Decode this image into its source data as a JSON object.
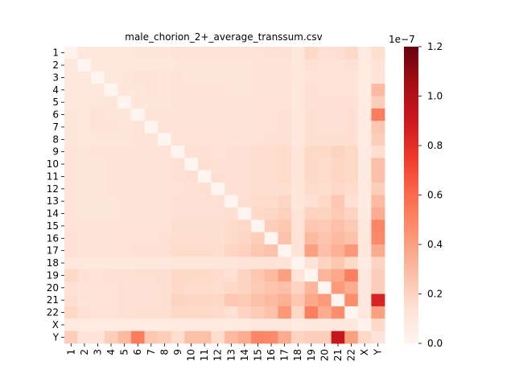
{
  "chart_data": {
    "type": "heatmap",
    "title": "male_chorion_2+_average_transsum.csv",
    "labels": [
      "1",
      "2",
      "3",
      "4",
      "5",
      "6",
      "7",
      "8",
      "9",
      "10",
      "11",
      "12",
      "13",
      "14",
      "15",
      "16",
      "17",
      "18",
      "19",
      "20",
      "21",
      "22",
      "X",
      "Y"
    ],
    "colorbar": {
      "min": 0.0,
      "max": 1.2,
      "offset_label": "1e−7",
      "ticks": [
        0.0,
        0.2,
        0.4,
        0.6,
        0.8,
        1.0,
        1.2
      ],
      "tick_labels": [
        "0.0",
        "0.2",
        "0.4",
        "0.6",
        "0.8",
        "1.0",
        "1.2"
      ],
      "colormap": "Reds"
    },
    "matrix": [
      [
        0.02,
        0.1,
        0.1,
        0.1,
        0.1,
        0.11,
        0.11,
        0.11,
        0.13,
        0.12,
        0.12,
        0.12,
        0.12,
        0.13,
        0.13,
        0.14,
        0.14,
        0.1,
        0.18,
        0.14,
        0.15,
        0.18,
        0.08,
        0.16
      ],
      [
        0.1,
        0.0,
        0.1,
        0.1,
        0.1,
        0.1,
        0.1,
        0.1,
        0.11,
        0.11,
        0.11,
        0.11,
        0.11,
        0.11,
        0.12,
        0.12,
        0.12,
        0.1,
        0.14,
        0.13,
        0.12,
        0.14,
        0.07,
        0.13
      ],
      [
        0.1,
        0.1,
        0.0,
        0.1,
        0.11,
        0.12,
        0.12,
        0.11,
        0.12,
        0.11,
        0.11,
        0.11,
        0.11,
        0.11,
        0.12,
        0.12,
        0.12,
        0.1,
        0.13,
        0.13,
        0.13,
        0.13,
        0.07,
        0.12
      ],
      [
        0.1,
        0.1,
        0.1,
        0.0,
        0.11,
        0.11,
        0.12,
        0.11,
        0.12,
        0.12,
        0.12,
        0.12,
        0.11,
        0.11,
        0.12,
        0.12,
        0.13,
        0.1,
        0.14,
        0.13,
        0.13,
        0.13,
        0.07,
        0.3
      ],
      [
        0.1,
        0.1,
        0.11,
        0.11,
        0.0,
        0.11,
        0.11,
        0.11,
        0.12,
        0.12,
        0.12,
        0.12,
        0.12,
        0.12,
        0.13,
        0.13,
        0.13,
        0.1,
        0.14,
        0.14,
        0.14,
        0.14,
        0.07,
        0.22
      ],
      [
        0.11,
        0.1,
        0.12,
        0.11,
        0.11,
        0.0,
        0.12,
        0.12,
        0.13,
        0.12,
        0.12,
        0.12,
        0.12,
        0.12,
        0.13,
        0.13,
        0.14,
        0.1,
        0.15,
        0.14,
        0.14,
        0.15,
        0.07,
        0.53
      ],
      [
        0.11,
        0.1,
        0.12,
        0.12,
        0.11,
        0.12,
        0.0,
        0.12,
        0.13,
        0.12,
        0.12,
        0.12,
        0.12,
        0.12,
        0.13,
        0.13,
        0.14,
        0.1,
        0.15,
        0.14,
        0.14,
        0.15,
        0.07,
        0.25
      ],
      [
        0.11,
        0.1,
        0.11,
        0.11,
        0.11,
        0.12,
        0.12,
        0.0,
        0.13,
        0.13,
        0.13,
        0.13,
        0.12,
        0.12,
        0.13,
        0.14,
        0.14,
        0.1,
        0.15,
        0.15,
        0.15,
        0.15,
        0.07,
        0.22
      ],
      [
        0.13,
        0.11,
        0.12,
        0.12,
        0.12,
        0.13,
        0.13,
        0.13,
        0.0,
        0.14,
        0.14,
        0.13,
        0.14,
        0.14,
        0.16,
        0.16,
        0.17,
        0.11,
        0.18,
        0.18,
        0.2,
        0.18,
        0.08,
        0.16
      ],
      [
        0.12,
        0.11,
        0.11,
        0.12,
        0.12,
        0.12,
        0.12,
        0.13,
        0.14,
        0.0,
        0.15,
        0.14,
        0.14,
        0.14,
        0.15,
        0.16,
        0.17,
        0.11,
        0.18,
        0.17,
        0.19,
        0.18,
        0.08,
        0.28
      ],
      [
        0.12,
        0.11,
        0.11,
        0.12,
        0.12,
        0.12,
        0.12,
        0.13,
        0.14,
        0.15,
        0.0,
        0.15,
        0.14,
        0.14,
        0.15,
        0.16,
        0.17,
        0.11,
        0.18,
        0.17,
        0.19,
        0.18,
        0.08,
        0.28
      ],
      [
        0.12,
        0.11,
        0.11,
        0.12,
        0.12,
        0.12,
        0.12,
        0.13,
        0.13,
        0.14,
        0.15,
        0.0,
        0.14,
        0.14,
        0.15,
        0.15,
        0.16,
        0.11,
        0.17,
        0.16,
        0.18,
        0.17,
        0.08,
        0.22
      ],
      [
        0.12,
        0.11,
        0.11,
        0.11,
        0.12,
        0.12,
        0.12,
        0.12,
        0.14,
        0.14,
        0.14,
        0.14,
        0.0,
        0.15,
        0.17,
        0.17,
        0.19,
        0.11,
        0.14,
        0.18,
        0.25,
        0.14,
        0.07,
        0.3
      ],
      [
        0.13,
        0.11,
        0.11,
        0.11,
        0.12,
        0.12,
        0.12,
        0.12,
        0.14,
        0.14,
        0.14,
        0.14,
        0.15,
        0.0,
        0.18,
        0.19,
        0.21,
        0.12,
        0.2,
        0.2,
        0.24,
        0.2,
        0.08,
        0.35
      ],
      [
        0.13,
        0.12,
        0.12,
        0.12,
        0.13,
        0.13,
        0.13,
        0.13,
        0.16,
        0.15,
        0.15,
        0.15,
        0.17,
        0.18,
        0.0,
        0.22,
        0.25,
        0.13,
        0.25,
        0.24,
        0.28,
        0.24,
        0.09,
        0.5
      ],
      [
        0.14,
        0.12,
        0.12,
        0.12,
        0.13,
        0.13,
        0.13,
        0.14,
        0.16,
        0.16,
        0.16,
        0.15,
        0.17,
        0.19,
        0.22,
        0.0,
        0.27,
        0.13,
        0.3,
        0.26,
        0.3,
        0.27,
        0.09,
        0.48
      ],
      [
        0.14,
        0.12,
        0.12,
        0.13,
        0.13,
        0.14,
        0.14,
        0.14,
        0.17,
        0.17,
        0.17,
        0.16,
        0.19,
        0.21,
        0.25,
        0.27,
        0.0,
        0.13,
        0.4,
        0.28,
        0.34,
        0.43,
        0.09,
        0.36
      ],
      [
        0.1,
        0.1,
        0.1,
        0.1,
        0.1,
        0.1,
        0.1,
        0.1,
        0.11,
        0.11,
        0.11,
        0.11,
        0.11,
        0.12,
        0.13,
        0.13,
        0.13,
        0.0,
        0.12,
        0.2,
        0.25,
        0.18,
        0.07,
        0.2
      ],
      [
        0.18,
        0.14,
        0.13,
        0.14,
        0.14,
        0.15,
        0.15,
        0.15,
        0.18,
        0.18,
        0.18,
        0.17,
        0.14,
        0.2,
        0.25,
        0.3,
        0.4,
        0.12,
        0.0,
        0.32,
        0.37,
        0.52,
        0.09,
        0.22
      ],
      [
        0.14,
        0.13,
        0.13,
        0.13,
        0.14,
        0.14,
        0.14,
        0.15,
        0.18,
        0.17,
        0.17,
        0.16,
        0.18,
        0.2,
        0.24,
        0.26,
        0.28,
        0.2,
        0.32,
        0.0,
        0.42,
        0.35,
        0.09,
        0.22
      ],
      [
        0.15,
        0.12,
        0.13,
        0.13,
        0.14,
        0.14,
        0.14,
        0.15,
        0.2,
        0.19,
        0.19,
        0.18,
        0.25,
        0.24,
        0.28,
        0.3,
        0.34,
        0.25,
        0.37,
        0.42,
        0.0,
        0.47,
        0.09,
        0.85
      ],
      [
        0.18,
        0.14,
        0.13,
        0.13,
        0.14,
        0.15,
        0.15,
        0.15,
        0.18,
        0.18,
        0.18,
        0.17,
        0.14,
        0.2,
        0.24,
        0.27,
        0.43,
        0.18,
        0.52,
        0.35,
        0.47,
        0.0,
        0.09,
        0.4
      ],
      [
        0.08,
        0.07,
        0.07,
        0.07,
        0.07,
        0.07,
        0.07,
        0.07,
        0.08,
        0.08,
        0.08,
        0.08,
        0.07,
        0.08,
        0.09,
        0.09,
        0.09,
        0.07,
        0.09,
        0.09,
        0.09,
        0.09,
        0.02,
        0.18
      ],
      [
        0.22,
        0.12,
        0.12,
        0.22,
        0.3,
        0.53,
        0.25,
        0.22,
        0.16,
        0.28,
        0.28,
        0.16,
        0.3,
        0.35,
        0.5,
        0.48,
        0.36,
        0.2,
        0.22,
        0.22,
        0.92,
        0.4,
        0.18,
        0.12
      ]
    ]
  }
}
